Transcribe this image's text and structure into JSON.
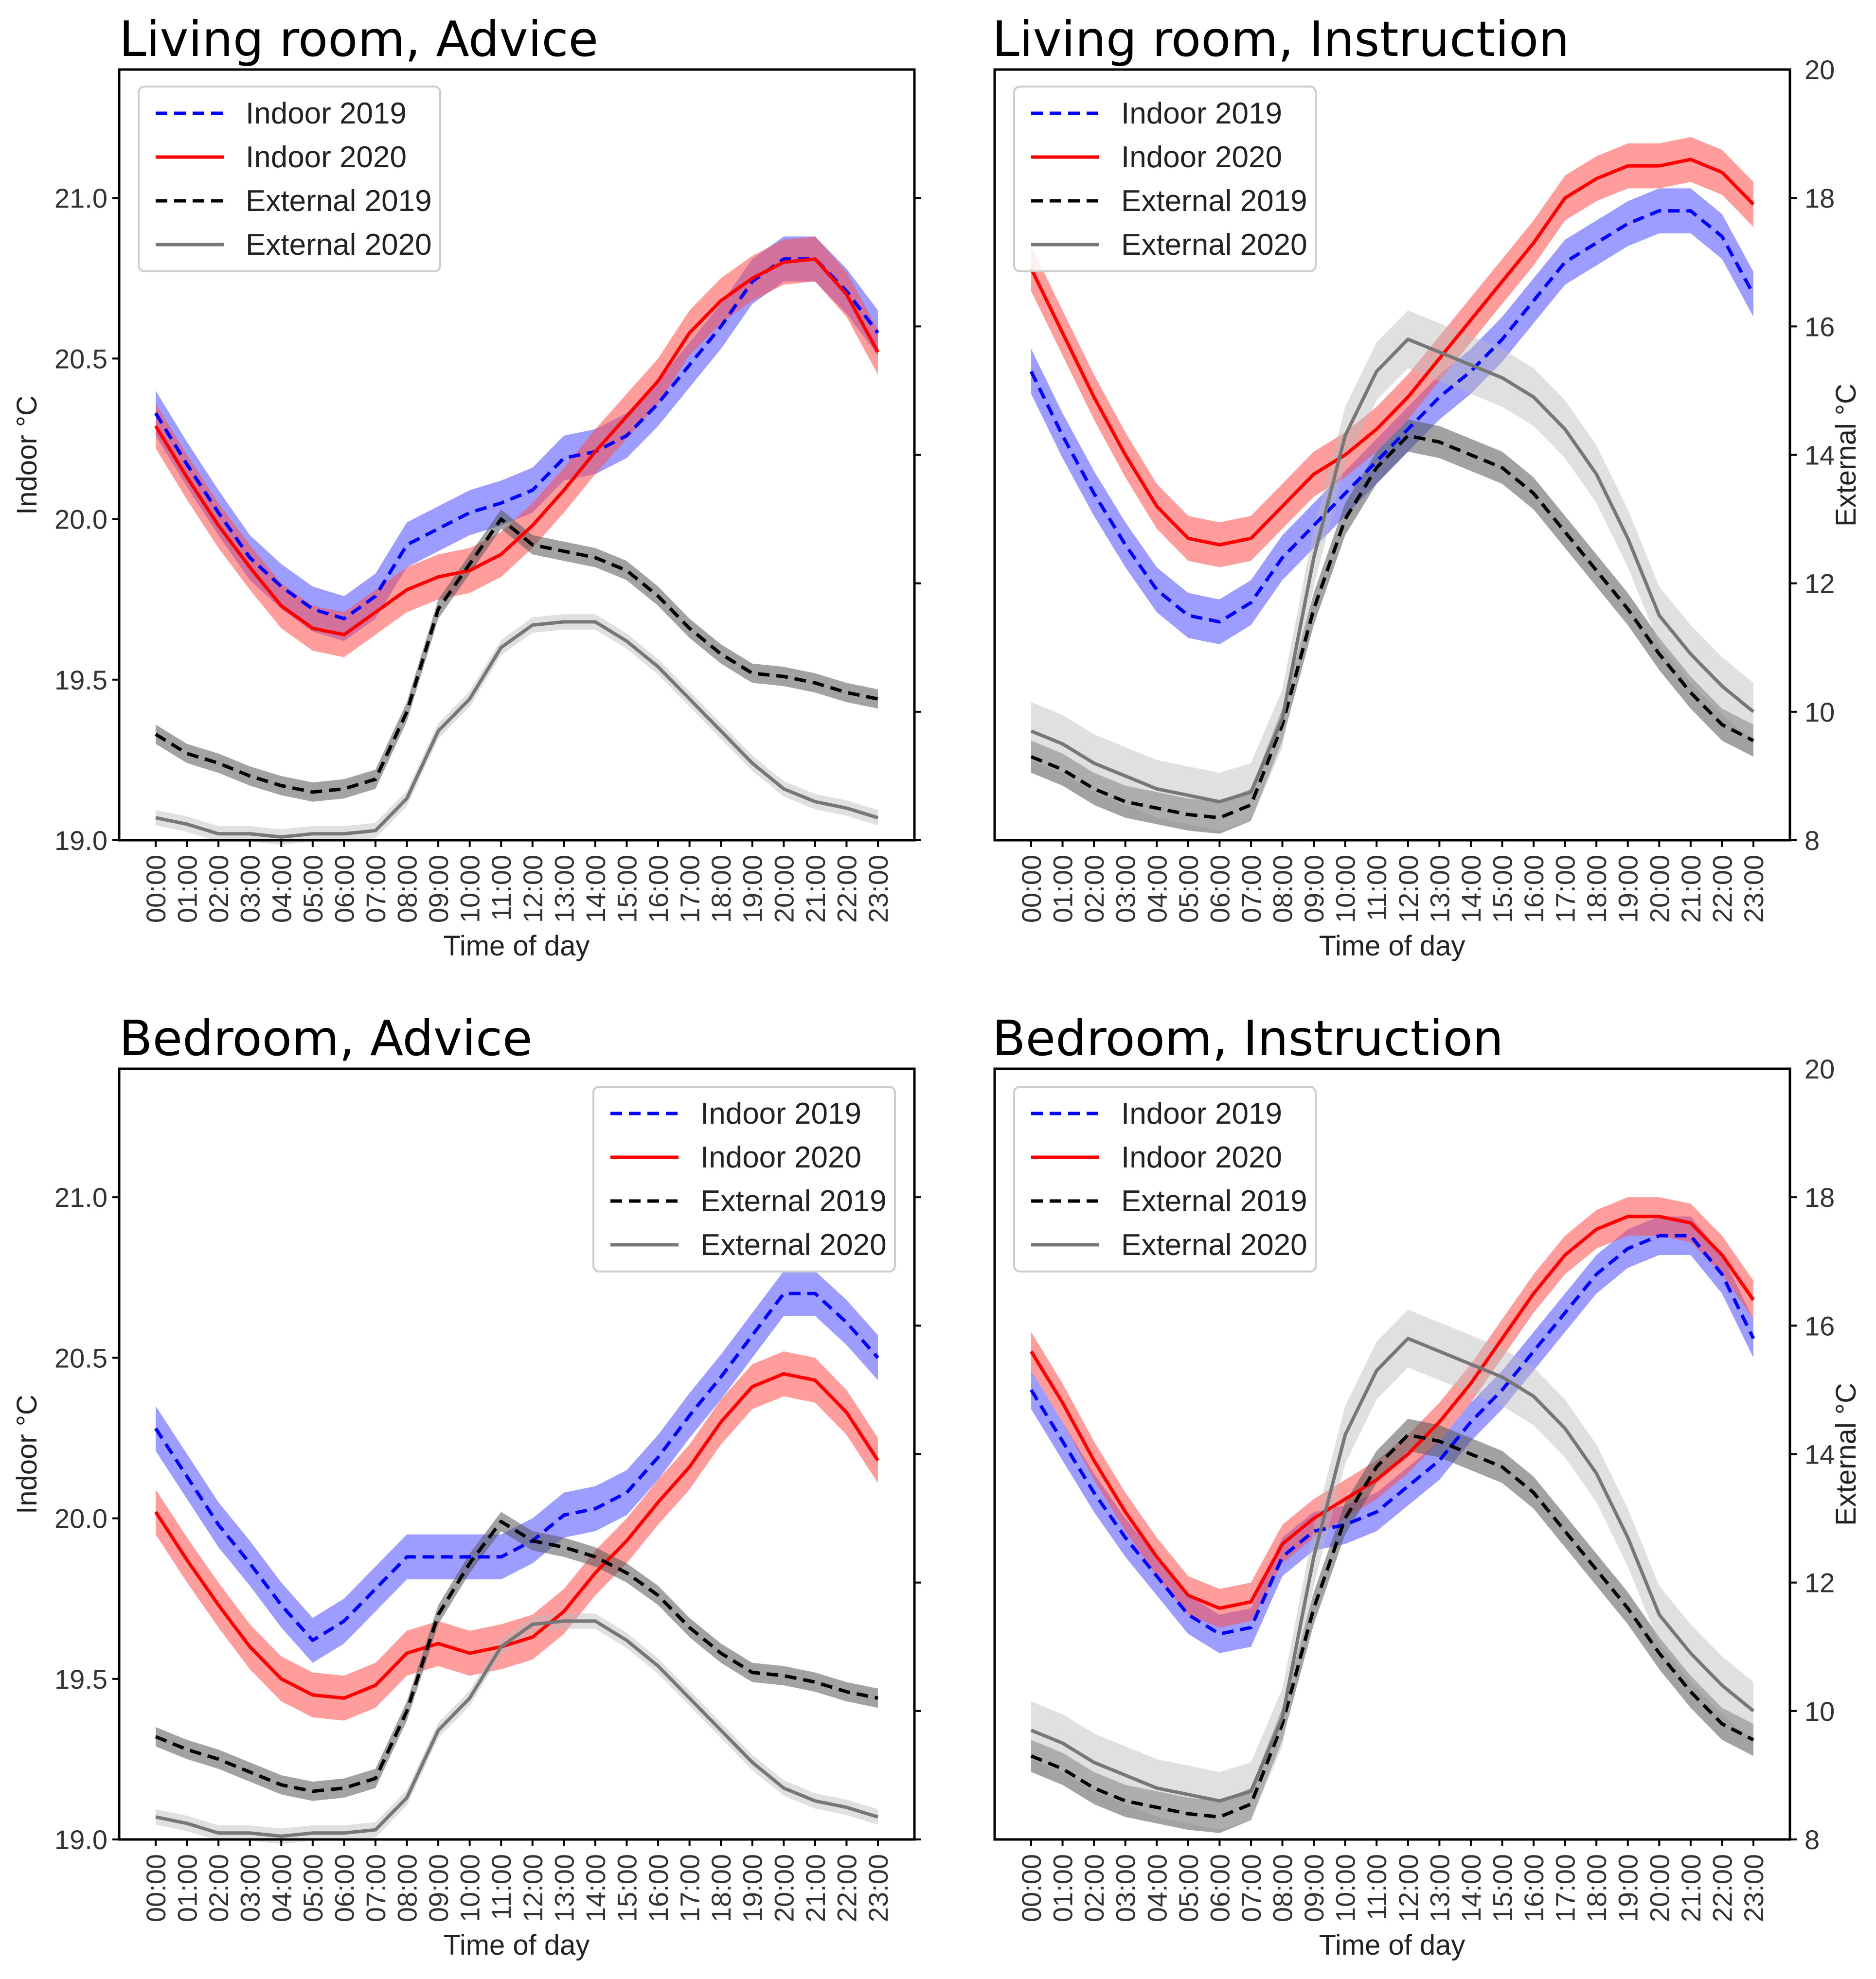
{
  "figure": {
    "colors": {
      "indoor_2019": "#0000ff",
      "indoor_2020": "#ff0000",
      "external_2019": "#000000",
      "external_2020": "#777777",
      "band_2019": "#4d4dff",
      "band_2020": "#ff4d4d",
      "band_ext_2019": "#555555",
      "band_ext_2020": "#bbbbbb"
    }
  },
  "chart_data": [
    {
      "type": "line",
      "title": "Living room, Advice",
      "xlabel": "Time of day",
      "ylabel": "Indoor °C",
      "y2label": "",
      "ylim": [
        19.0,
        21.4
      ],
      "y2lim": [
        8,
        20
      ],
      "yticks": [
        "19.0",
        "19.5",
        "20.0",
        "20.5",
        "21.0"
      ],
      "y2ticks": [],
      "legend_position": "top-left",
      "x": [
        "00:00",
        "01:00",
        "02:00",
        "03:00",
        "04:00",
        "05:00",
        "06:00",
        "07:00",
        "08:00",
        "09:00",
        "10:00",
        "11:00",
        "12:00",
        "13:00",
        "14:00",
        "15:00",
        "16:00",
        "17:00",
        "18:00",
        "19:00",
        "20:00",
        "21:00",
        "22:00",
        "23:00"
      ],
      "series": [
        {
          "name": "Indoor 2019",
          "axis": "left",
          "style": "dashed",
          "color_key": "indoor_2019",
          "values": [
            20.33,
            20.17,
            20.02,
            19.88,
            19.79,
            19.72,
            19.69,
            19.76,
            19.92,
            19.97,
            20.02,
            20.05,
            20.09,
            20.19,
            20.21,
            20.26,
            20.36,
            20.48,
            20.6,
            20.74,
            20.81,
            20.81,
            20.71,
            20.58
          ],
          "band": 0.07
        },
        {
          "name": "Indoor 2020",
          "axis": "left",
          "style": "solid",
          "color_key": "indoor_2020",
          "values": [
            20.29,
            20.13,
            19.98,
            19.85,
            19.73,
            19.66,
            19.64,
            19.71,
            19.78,
            19.82,
            19.84,
            19.89,
            19.98,
            20.09,
            20.21,
            20.32,
            20.43,
            20.58,
            20.68,
            20.75,
            20.8,
            20.81,
            20.7,
            20.52
          ],
          "band": 0.07
        },
        {
          "name": "External 2019",
          "axis": "right",
          "style": "dashed",
          "color_key": "external_2019",
          "values": [
            9.65,
            9.35,
            9.2,
            9.0,
            8.85,
            8.75,
            8.8,
            8.95,
            10.0,
            11.6,
            12.3,
            13.0,
            12.6,
            12.5,
            12.4,
            12.2,
            11.8,
            11.3,
            10.9,
            10.6,
            10.55,
            10.45,
            10.3,
            10.2
          ],
          "band": 0.15
        },
        {
          "name": "External 2020",
          "axis": "right",
          "style": "solid",
          "color_key": "external_2020",
          "values": [
            8.35,
            8.25,
            8.1,
            8.1,
            8.05,
            8.1,
            8.1,
            8.15,
            8.65,
            9.7,
            10.2,
            11.0,
            11.35,
            11.4,
            11.4,
            11.1,
            10.7,
            10.2,
            9.7,
            9.2,
            8.8,
            8.6,
            8.5,
            8.35
          ],
          "band": 0.12
        }
      ]
    },
    {
      "type": "line",
      "title": "Living room, Instruction",
      "xlabel": "Time of day",
      "ylabel": "",
      "y2label": "External °C",
      "ylim": [
        19.0,
        21.4
      ],
      "y2lim": [
        8,
        20
      ],
      "yticks": [],
      "y2ticks": [
        "8",
        "10",
        "12",
        "14",
        "16",
        "18",
        "20"
      ],
      "legend_position": "top-left",
      "x": [
        "00:00",
        "01:00",
        "02:00",
        "03:00",
        "04:00",
        "05:00",
        "06:00",
        "07:00",
        "08:00",
        "09:00",
        "10:00",
        "11:00",
        "12:00",
        "13:00",
        "14:00",
        "15:00",
        "16:00",
        "17:00",
        "18:00",
        "19:00",
        "20:00",
        "21:00",
        "22:00",
        "23:00"
      ],
      "series": [
        {
          "name": "Indoor 2019",
          "axis": "right",
          "style": "dashed",
          "color_key": "indoor_2019",
          "values": [
            15.3,
            14.3,
            13.4,
            12.6,
            11.9,
            11.5,
            11.4,
            11.7,
            12.4,
            12.9,
            13.4,
            13.9,
            14.4,
            14.9,
            15.3,
            15.8,
            16.4,
            17.0,
            17.3,
            17.6,
            17.8,
            17.8,
            17.4,
            16.5
          ],
          "band": 0.35
        },
        {
          "name": "Indoor 2020",
          "axis": "right",
          "style": "solid",
          "color_key": "indoor_2020",
          "values": [
            16.9,
            15.9,
            14.9,
            14.0,
            13.2,
            12.7,
            12.6,
            12.7,
            13.2,
            13.7,
            14.0,
            14.4,
            14.9,
            15.5,
            16.1,
            16.7,
            17.3,
            18.0,
            18.3,
            18.5,
            18.5,
            18.6,
            18.4,
            17.9
          ],
          "band": 0.35
        },
        {
          "name": "External 2019",
          "axis": "right",
          "style": "dashed",
          "color_key": "external_2019",
          "values": [
            9.3,
            9.1,
            8.8,
            8.6,
            8.5,
            8.4,
            8.35,
            8.55,
            9.8,
            11.6,
            13.0,
            13.8,
            14.3,
            14.2,
            14.0,
            13.8,
            13.4,
            12.8,
            12.2,
            11.6,
            10.9,
            10.3,
            9.8,
            9.55
          ],
          "band": 0.25
        },
        {
          "name": "External 2020",
          "axis": "right",
          "style": "solid",
          "color_key": "external_2020",
          "values": [
            9.7,
            9.5,
            9.2,
            9.0,
            8.8,
            8.7,
            8.6,
            8.75,
            9.9,
            12.4,
            14.3,
            15.3,
            15.8,
            15.6,
            15.4,
            15.2,
            14.9,
            14.4,
            13.7,
            12.7,
            11.5,
            10.9,
            10.4,
            10.0
          ],
          "band": 0.45
        }
      ]
    },
    {
      "type": "line",
      "title": "Bedroom, Advice",
      "xlabel": "Time of day",
      "ylabel": "Indoor °C",
      "y2label": "",
      "ylim": [
        19.0,
        21.4
      ],
      "y2lim": [
        8,
        20
      ],
      "yticks": [
        "19.0",
        "19.5",
        "20.0",
        "20.5",
        "21.0"
      ],
      "y2ticks": [],
      "legend_position": "top-right",
      "x": [
        "00:00",
        "01:00",
        "02:00",
        "03:00",
        "04:00",
        "05:00",
        "06:00",
        "07:00",
        "08:00",
        "09:00",
        "10:00",
        "11:00",
        "12:00",
        "13:00",
        "14:00",
        "15:00",
        "16:00",
        "17:00",
        "18:00",
        "19:00",
        "20:00",
        "21:00",
        "22:00",
        "23:00"
      ],
      "series": [
        {
          "name": "Indoor 2019",
          "axis": "left",
          "style": "dashed",
          "color_key": "indoor_2019",
          "values": [
            20.28,
            20.13,
            19.98,
            19.86,
            19.73,
            19.62,
            19.68,
            19.78,
            19.88,
            19.88,
            19.88,
            19.88,
            19.93,
            20.01,
            20.03,
            20.08,
            20.19,
            20.32,
            20.44,
            20.57,
            20.7,
            20.7,
            20.61,
            20.5
          ],
          "band": 0.07
        },
        {
          "name": "Indoor 2020",
          "axis": "left",
          "style": "solid",
          "color_key": "indoor_2020",
          "values": [
            20.02,
            19.87,
            19.73,
            19.6,
            19.5,
            19.45,
            19.44,
            19.48,
            19.58,
            19.61,
            19.58,
            19.6,
            19.63,
            19.71,
            19.83,
            19.93,
            20.05,
            20.16,
            20.3,
            20.41,
            20.45,
            20.43,
            20.33,
            20.18
          ],
          "band": 0.07
        },
        {
          "name": "External 2019",
          "axis": "right",
          "style": "dashed",
          "color_key": "external_2019",
          "values": [
            9.6,
            9.4,
            9.25,
            9.05,
            8.85,
            8.75,
            8.8,
            8.95,
            10.0,
            11.5,
            12.3,
            12.95,
            12.65,
            12.55,
            12.4,
            12.15,
            11.8,
            11.3,
            10.9,
            10.6,
            10.55,
            10.45,
            10.3,
            10.2
          ],
          "band": 0.15
        },
        {
          "name": "External 2020",
          "axis": "right",
          "style": "solid",
          "color_key": "external_2020",
          "values": [
            8.35,
            8.25,
            8.1,
            8.1,
            8.05,
            8.1,
            8.1,
            8.15,
            8.65,
            9.7,
            10.2,
            11.0,
            11.35,
            11.4,
            11.4,
            11.1,
            10.7,
            10.2,
            9.7,
            9.2,
            8.8,
            8.6,
            8.5,
            8.35
          ],
          "band": 0.12
        }
      ]
    },
    {
      "type": "line",
      "title": "Bedroom, Instruction",
      "xlabel": "Time of day",
      "ylabel": "",
      "y2label": "External °C",
      "ylim": [
        19.0,
        21.4
      ],
      "y2lim": [
        8,
        20
      ],
      "yticks": [],
      "y2ticks": [
        "8",
        "10",
        "12",
        "14",
        "16",
        "18",
        "20"
      ],
      "legend_position": "top-left",
      "x": [
        "00:00",
        "01:00",
        "02:00",
        "03:00",
        "04:00",
        "05:00",
        "06:00",
        "07:00",
        "08:00",
        "09:00",
        "10:00",
        "11:00",
        "12:00",
        "13:00",
        "14:00",
        "15:00",
        "16:00",
        "17:00",
        "18:00",
        "19:00",
        "20:00",
        "21:00",
        "22:00",
        "23:00"
      ],
      "series": [
        {
          "name": "Indoor 2019",
          "axis": "right",
          "style": "dashed",
          "color_key": "indoor_2019",
          "values": [
            15.0,
            14.2,
            13.4,
            12.7,
            12.1,
            11.5,
            11.2,
            11.3,
            12.4,
            12.8,
            12.9,
            13.1,
            13.5,
            13.9,
            14.5,
            15.0,
            15.6,
            16.2,
            16.8,
            17.2,
            17.4,
            17.4,
            16.8,
            15.8
          ],
          "band": 0.3
        },
        {
          "name": "Indoor 2020",
          "axis": "right",
          "style": "solid",
          "color_key": "indoor_2020",
          "values": [
            15.6,
            14.8,
            13.9,
            13.1,
            12.4,
            11.8,
            11.6,
            11.7,
            12.6,
            13.0,
            13.3,
            13.6,
            14.0,
            14.5,
            15.1,
            15.8,
            16.5,
            17.1,
            17.5,
            17.7,
            17.7,
            17.6,
            17.1,
            16.4
          ],
          "band": 0.3
        },
        {
          "name": "External 2019",
          "axis": "right",
          "style": "dashed",
          "color_key": "external_2019",
          "values": [
            9.3,
            9.1,
            8.8,
            8.6,
            8.5,
            8.4,
            8.35,
            8.55,
            9.8,
            11.6,
            13.0,
            13.8,
            14.3,
            14.2,
            14.0,
            13.8,
            13.4,
            12.8,
            12.2,
            11.6,
            10.9,
            10.3,
            9.8,
            9.55
          ],
          "band": 0.25
        },
        {
          "name": "External 2020",
          "axis": "right",
          "style": "solid",
          "color_key": "external_2020",
          "values": [
            9.7,
            9.5,
            9.2,
            9.0,
            8.8,
            8.7,
            8.6,
            8.75,
            9.9,
            12.4,
            14.3,
            15.3,
            15.8,
            15.6,
            15.4,
            15.2,
            14.9,
            14.4,
            13.7,
            12.7,
            11.5,
            10.9,
            10.4,
            10.0
          ],
          "band": 0.45
        }
      ]
    }
  ]
}
